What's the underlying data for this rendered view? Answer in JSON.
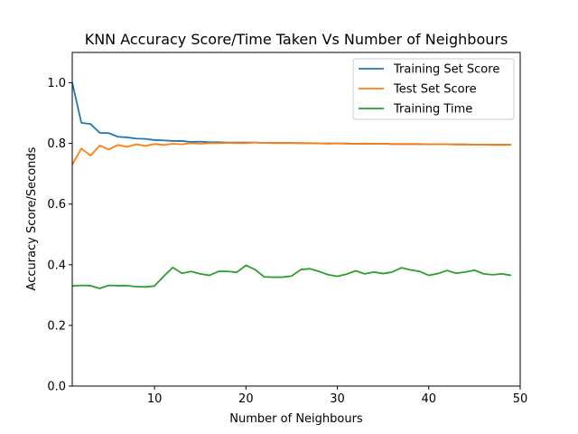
{
  "chart_data": {
    "type": "line",
    "title": "KNN Accuracy Score/Time Taken Vs Number of Neighbours",
    "xlabel": "Number of Neighbours",
    "ylabel": "Accuracy Score/Seconds",
    "xlim": [
      1,
      50
    ],
    "ylim": [
      0,
      1.1
    ],
    "xticks": [
      10,
      20,
      30,
      40,
      50
    ],
    "yticks": [
      0.0,
      0.2,
      0.4,
      0.6,
      0.8,
      1.0
    ],
    "xtick_labels": [
      "10",
      "20",
      "30",
      "40",
      "50"
    ],
    "ytick_labels": [
      "0.0",
      "0.2",
      "0.4",
      "0.6",
      "0.8",
      "1.0"
    ],
    "grid": false,
    "legend_position": "top-right",
    "x": [
      1,
      2,
      3,
      4,
      5,
      6,
      7,
      8,
      9,
      10,
      11,
      12,
      13,
      14,
      15,
      16,
      17,
      18,
      19,
      20,
      21,
      22,
      23,
      24,
      25,
      26,
      27,
      28,
      29,
      30,
      31,
      32,
      33,
      34,
      35,
      36,
      37,
      38,
      39,
      40,
      41,
      42,
      43,
      44,
      45,
      46,
      47,
      48,
      49
    ],
    "series": [
      {
        "name": "Training Set Score",
        "color": "#1f77b4",
        "values": [
          1.0,
          0.868,
          0.864,
          0.835,
          0.834,
          0.822,
          0.82,
          0.816,
          0.815,
          0.811,
          0.81,
          0.808,
          0.808,
          0.805,
          0.806,
          0.804,
          0.804,
          0.803,
          0.803,
          0.803,
          0.803,
          0.802,
          0.802,
          0.802,
          0.802,
          0.801,
          0.801,
          0.8,
          0.8,
          0.8,
          0.8,
          0.799,
          0.799,
          0.799,
          0.799,
          0.798,
          0.798,
          0.798,
          0.798,
          0.797,
          0.797,
          0.797,
          0.797,
          0.797,
          0.796,
          0.796,
          0.796,
          0.796,
          0.796
        ]
      },
      {
        "name": "Test Set Score",
        "color": "#ff7f0e",
        "values": [
          0.73,
          0.783,
          0.76,
          0.793,
          0.78,
          0.795,
          0.789,
          0.797,
          0.792,
          0.798,
          0.795,
          0.799,
          0.797,
          0.801,
          0.799,
          0.801,
          0.801,
          0.802,
          0.801,
          0.801,
          0.803,
          0.802,
          0.801,
          0.801,
          0.801,
          0.8,
          0.801,
          0.8,
          0.799,
          0.8,
          0.799,
          0.799,
          0.8,
          0.799,
          0.799,
          0.798,
          0.798,
          0.798,
          0.798,
          0.797,
          0.797,
          0.797,
          0.796,
          0.796,
          0.796,
          0.796,
          0.795,
          0.795,
          0.795
        ]
      },
      {
        "name": "Training Time",
        "color": "#2ca02c",
        "values": [
          0.33,
          0.332,
          0.331,
          0.322,
          0.332,
          0.331,
          0.331,
          0.328,
          0.327,
          0.33,
          0.362,
          0.391,
          0.372,
          0.378,
          0.37,
          0.365,
          0.378,
          0.378,
          0.375,
          0.398,
          0.384,
          0.36,
          0.359,
          0.359,
          0.363,
          0.384,
          0.387,
          0.378,
          0.367,
          0.362,
          0.369,
          0.38,
          0.37,
          0.376,
          0.371,
          0.376,
          0.39,
          0.383,
          0.378,
          0.365,
          0.371,
          0.381,
          0.372,
          0.376,
          0.382,
          0.37,
          0.367,
          0.37,
          0.365
        ]
      }
    ]
  }
}
